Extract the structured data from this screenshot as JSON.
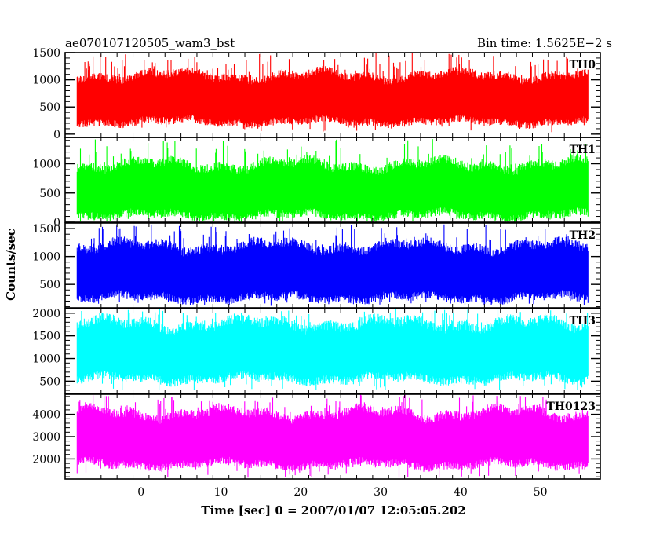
{
  "header": {
    "left_title": "ae070107120505_wam3_bst",
    "right_title": "Bin time: 1.5625E−2 s"
  },
  "chart_data": {
    "type": "line",
    "xlabel": "Time [sec] 0 = 2007/01/07 12:05:05.202",
    "ylabel": "Counts/sec",
    "xlim": [
      -9.5,
      57.5
    ],
    "x_range_data": [
      -8,
      56
    ],
    "x_ticks": [
      0,
      10,
      20,
      30,
      40,
      50
    ],
    "grid": false,
    "panels": [
      {
        "name": "TH0",
        "color": "#ff0000",
        "ylim": [
          -60,
          1500
        ],
        "y_ticks": [
          0,
          500,
          1000,
          1500
        ],
        "mean": 640,
        "base_min": 230,
        "base_max": 1080,
        "spike_max": 1490,
        "dip_min": 30
      },
      {
        "name": "TH1",
        "color": "#00ff00",
        "ylim": [
          0,
          1450
        ],
        "y_ticks": [
          0,
          500,
          1000
        ],
        "mean": 500,
        "base_min": 120,
        "base_max": 980,
        "spike_max": 1430,
        "dip_min": 10
      },
      {
        "name": "TH2",
        "color": "#0000ff",
        "ylim": [
          80,
          1600
        ],
        "y_ticks": [
          500,
          1000,
          1500
        ],
        "mean": 690,
        "base_min": 260,
        "base_max": 1180,
        "spike_max": 1580,
        "dip_min": 110
      },
      {
        "name": "TH3",
        "color": "#00ffff",
        "ylim": [
          230,
          2100
        ],
        "y_ticks": [
          500,
          1000,
          1500,
          2000
        ],
        "mean": 1200,
        "base_min": 560,
        "base_max": 1760,
        "spike_max": 2090,
        "dip_min": 300
      },
      {
        "name": "TH0123",
        "color": "#ff00ff",
        "ylim": [
          1100,
          4900
        ],
        "y_ticks": [
          2000,
          3000,
          4000
        ],
        "mean": 2950,
        "base_min": 1750,
        "base_max": 4050,
        "spike_max": 4880,
        "dip_min": 1150
      }
    ]
  }
}
